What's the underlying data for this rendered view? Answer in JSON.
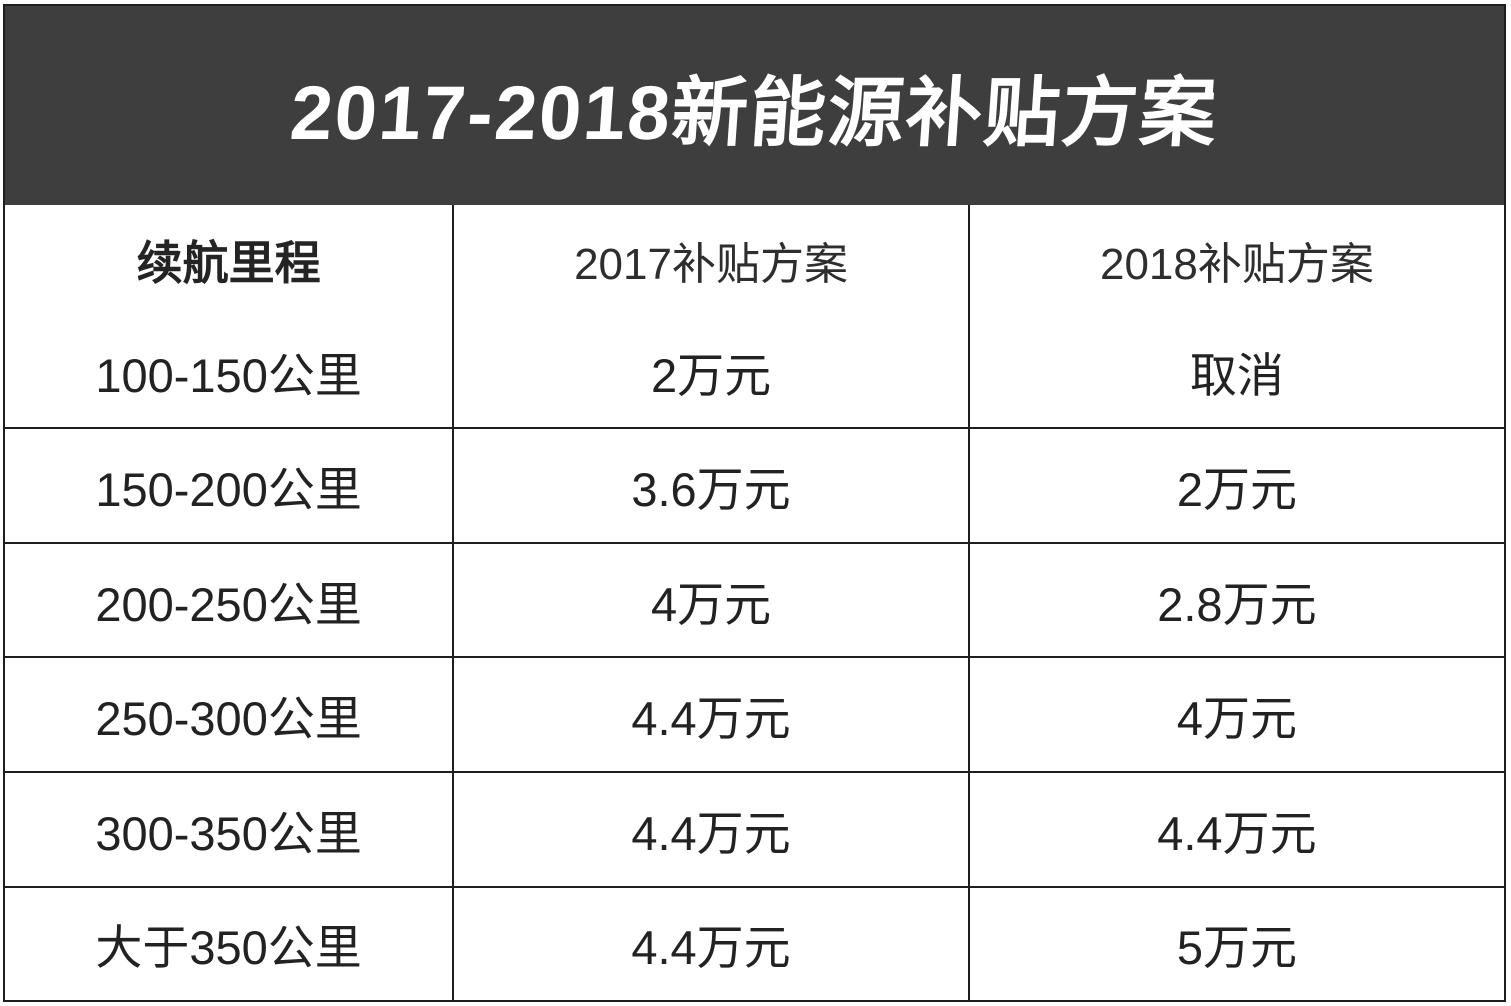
{
  "banner": {
    "bg_color": "#3e3e3e",
    "text_color": "#ffffff"
  },
  "table_style": {
    "border_color": "#1e1e1e",
    "text_color": "#262626"
  },
  "chart_data": {
    "type": "table",
    "title": "2017-2018新能源补贴方案",
    "columns": [
      "续航里程",
      "2017补贴方案",
      "2018补贴方案"
    ],
    "rows": [
      [
        "100-150公里",
        "2万元",
        "取消"
      ],
      [
        "150-200公里",
        "3.6万元",
        "2万元"
      ],
      [
        "200-250公里",
        "4万元",
        "2.8万元"
      ],
      [
        "250-300公里",
        "4.4万元",
        "4万元"
      ],
      [
        "300-350公里",
        "4.4万元",
        "4.4万元"
      ],
      [
        "大于350公里",
        "4.4万元",
        "5万元"
      ]
    ]
  }
}
